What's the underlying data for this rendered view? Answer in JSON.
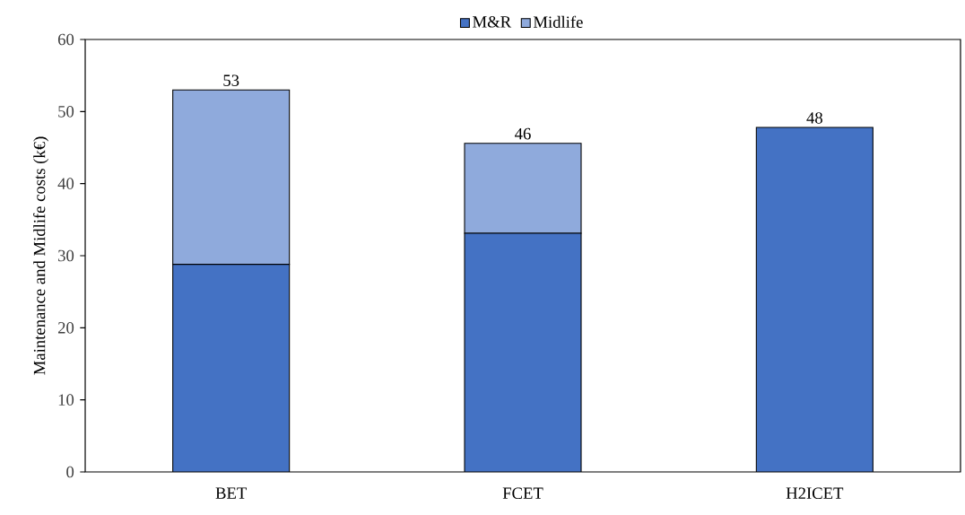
{
  "chart_data": {
    "type": "bar",
    "stacked": true,
    "ylabel": "Maintenance and Midlife costs (k€)",
    "categories": [
      "BET",
      "FCET",
      "H2ICET"
    ],
    "series": [
      {
        "name": "M&R",
        "color": "#4472c4",
        "values": [
          28.8,
          33.1,
          47.8
        ]
      },
      {
        "name": "Midlife",
        "color": "#8faadc",
        "values": [
          24.2,
          12.5,
          null
        ]
      }
    ],
    "totals": [
      "53",
      "46",
      "48"
    ],
    "ylim": [
      0,
      60
    ],
    "yticks": [
      0,
      10,
      20,
      30,
      40,
      50,
      60
    ],
    "legend": "top",
    "grid": false
  }
}
